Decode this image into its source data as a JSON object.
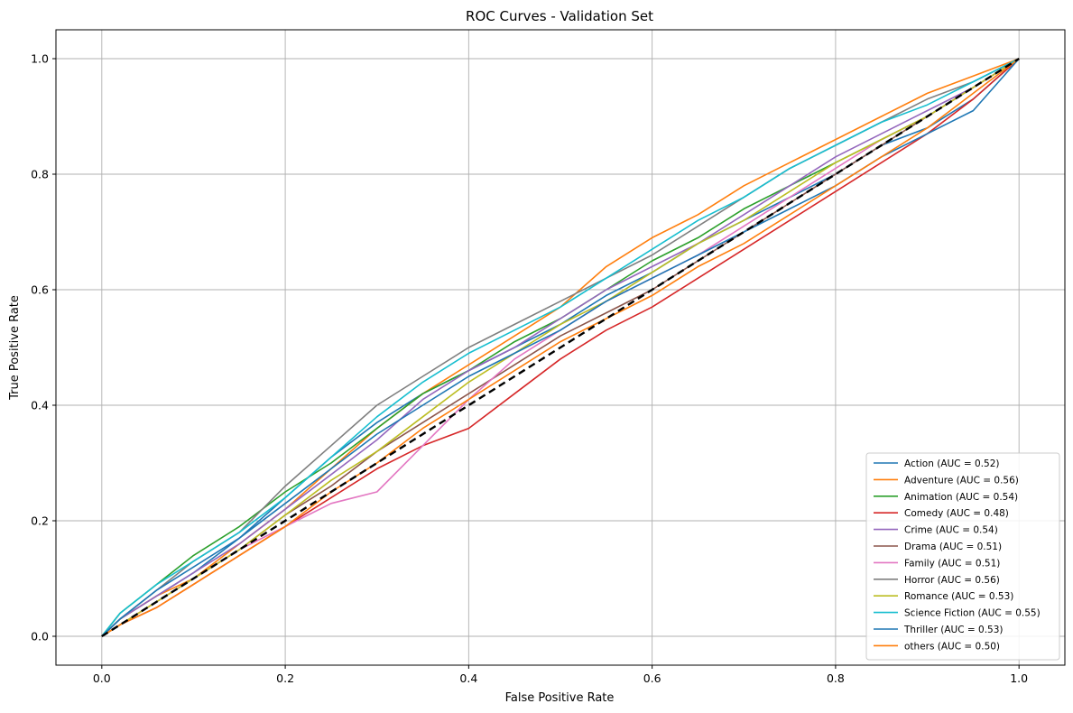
{
  "chart_data": {
    "type": "line",
    "title": "ROC Curves - Validation Set",
    "xlabel": "False Positive Rate",
    "ylabel": "True Positive Rate",
    "xlim": [
      -0.05,
      1.05
    ],
    "ylim": [
      -0.05,
      1.05
    ],
    "xticks": [
      "0.0",
      "0.2",
      "0.4",
      "0.6",
      "0.8",
      "1.0"
    ],
    "yticks": [
      "0.0",
      "0.2",
      "0.4",
      "0.6",
      "0.8",
      "1.0"
    ],
    "xtick_values": [
      0,
      0.2,
      0.4,
      0.6,
      0.8,
      1.0
    ],
    "ytick_values": [
      0,
      0.2,
      0.4,
      0.6,
      0.8,
      1.0
    ],
    "grid": true,
    "legend_position": "lower-right",
    "reference_line": {
      "x": [
        0,
        1
      ],
      "y": [
        0,
        1
      ],
      "color": "#000000",
      "style": "dashed"
    },
    "series": [
      {
        "name": "Action (AUC = 0.52)",
        "color": "#1f77b4",
        "x": [
          0,
          0.02,
          0.06,
          0.1,
          0.15,
          0.2,
          0.25,
          0.3,
          0.35,
          0.4,
          0.45,
          0.5,
          0.55,
          0.6,
          0.65,
          0.7,
          0.75,
          0.8,
          0.85,
          0.9,
          0.95,
          1.0
        ],
        "y": [
          0,
          0.03,
          0.07,
          0.11,
          0.17,
          0.24,
          0.31,
          0.37,
          0.42,
          0.46,
          0.5,
          0.54,
          0.59,
          0.63,
          0.68,
          0.72,
          0.76,
          0.8,
          0.85,
          0.88,
          0.93,
          1.0
        ]
      },
      {
        "name": "Adventure (AUC = 0.56)",
        "color": "#ff7f0e",
        "x": [
          0,
          0.02,
          0.06,
          0.1,
          0.15,
          0.2,
          0.25,
          0.3,
          0.35,
          0.4,
          0.45,
          0.5,
          0.55,
          0.6,
          0.65,
          0.7,
          0.75,
          0.8,
          0.85,
          0.9,
          0.95,
          1.0
        ],
        "y": [
          0,
          0.03,
          0.07,
          0.1,
          0.16,
          0.22,
          0.29,
          0.36,
          0.42,
          0.47,
          0.52,
          0.57,
          0.64,
          0.69,
          0.73,
          0.78,
          0.82,
          0.86,
          0.9,
          0.94,
          0.97,
          1.0
        ]
      },
      {
        "name": "Animation (AUC = 0.54)",
        "color": "#2ca02c",
        "x": [
          0,
          0.02,
          0.06,
          0.1,
          0.15,
          0.2,
          0.25,
          0.3,
          0.35,
          0.4,
          0.45,
          0.5,
          0.55,
          0.6,
          0.65,
          0.7,
          0.75,
          0.8,
          0.85,
          0.9,
          0.95,
          1.0
        ],
        "y": [
          0,
          0.04,
          0.09,
          0.14,
          0.19,
          0.25,
          0.3,
          0.36,
          0.42,
          0.46,
          0.51,
          0.55,
          0.6,
          0.65,
          0.69,
          0.74,
          0.78,
          0.82,
          0.86,
          0.9,
          0.95,
          1.0
        ]
      },
      {
        "name": "Comedy (AUC = 0.48)",
        "color": "#d62728",
        "x": [
          0,
          0.02,
          0.06,
          0.1,
          0.15,
          0.2,
          0.25,
          0.3,
          0.35,
          0.4,
          0.45,
          0.5,
          0.55,
          0.6,
          0.65,
          0.7,
          0.75,
          0.8,
          0.85,
          0.9,
          0.95,
          1.0
        ],
        "y": [
          0,
          0.02,
          0.05,
          0.09,
          0.14,
          0.19,
          0.24,
          0.29,
          0.33,
          0.36,
          0.42,
          0.48,
          0.53,
          0.57,
          0.62,
          0.67,
          0.72,
          0.77,
          0.82,
          0.87,
          0.93,
          1.0
        ]
      },
      {
        "name": "Crime (AUC = 0.54)",
        "color": "#9467bd",
        "x": [
          0,
          0.02,
          0.06,
          0.1,
          0.15,
          0.2,
          0.25,
          0.3,
          0.35,
          0.4,
          0.45,
          0.5,
          0.55,
          0.6,
          0.65,
          0.7,
          0.75,
          0.8,
          0.85,
          0.9,
          0.95,
          1.0
        ],
        "y": [
          0,
          0.03,
          0.07,
          0.11,
          0.16,
          0.22,
          0.28,
          0.34,
          0.41,
          0.46,
          0.5,
          0.55,
          0.6,
          0.64,
          0.68,
          0.73,
          0.78,
          0.83,
          0.87,
          0.91,
          0.95,
          1.0
        ]
      },
      {
        "name": "Drama (AUC = 0.51)",
        "color": "#8c564b",
        "x": [
          0,
          0.02,
          0.06,
          0.1,
          0.15,
          0.2,
          0.25,
          0.3,
          0.35,
          0.4,
          0.45,
          0.5,
          0.55,
          0.6,
          0.65,
          0.7,
          0.75,
          0.8,
          0.85,
          0.9,
          0.95,
          1.0
        ],
        "y": [
          0,
          0.02,
          0.06,
          0.1,
          0.15,
          0.21,
          0.26,
          0.32,
          0.37,
          0.42,
          0.47,
          0.52,
          0.56,
          0.6,
          0.65,
          0.7,
          0.75,
          0.8,
          0.85,
          0.9,
          0.95,
          1.0
        ]
      },
      {
        "name": "Family (AUC = 0.51)",
        "color": "#e377c2",
        "x": [
          0,
          0.02,
          0.06,
          0.1,
          0.15,
          0.2,
          0.25,
          0.3,
          0.35,
          0.4,
          0.45,
          0.5,
          0.55,
          0.6,
          0.65,
          0.7,
          0.75,
          0.8,
          0.85,
          0.9,
          0.95,
          1.0
        ],
        "y": [
          0,
          0.02,
          0.06,
          0.1,
          0.15,
          0.19,
          0.23,
          0.25,
          0.33,
          0.41,
          0.48,
          0.53,
          0.58,
          0.62,
          0.66,
          0.71,
          0.76,
          0.81,
          0.86,
          0.9,
          0.95,
          1.0
        ]
      },
      {
        "name": "Horror (AUC = 0.56)",
        "color": "#7f7f7f",
        "x": [
          0,
          0.02,
          0.06,
          0.1,
          0.15,
          0.2,
          0.25,
          0.3,
          0.35,
          0.4,
          0.45,
          0.5,
          0.55,
          0.6,
          0.65,
          0.7,
          0.75,
          0.8,
          0.85,
          0.9,
          0.95,
          1.0
        ],
        "y": [
          0,
          0.03,
          0.08,
          0.13,
          0.18,
          0.26,
          0.33,
          0.4,
          0.45,
          0.5,
          0.54,
          0.58,
          0.62,
          0.66,
          0.71,
          0.76,
          0.81,
          0.85,
          0.89,
          0.93,
          0.96,
          1.0
        ]
      },
      {
        "name": "Romance (AUC = 0.53)",
        "color": "#bcbd22",
        "x": [
          0,
          0.02,
          0.06,
          0.1,
          0.15,
          0.2,
          0.25,
          0.3,
          0.35,
          0.4,
          0.45,
          0.5,
          0.55,
          0.6,
          0.65,
          0.7,
          0.75,
          0.8,
          0.85,
          0.9,
          0.95,
          1.0
        ],
        "y": [
          0,
          0.02,
          0.06,
          0.1,
          0.15,
          0.21,
          0.27,
          0.32,
          0.38,
          0.44,
          0.49,
          0.54,
          0.58,
          0.63,
          0.68,
          0.72,
          0.77,
          0.82,
          0.86,
          0.9,
          0.95,
          1.0
        ]
      },
      {
        "name": "Science Fiction (AUC = 0.55)",
        "color": "#17becf",
        "x": [
          0,
          0.02,
          0.06,
          0.1,
          0.15,
          0.2,
          0.25,
          0.3,
          0.35,
          0.4,
          0.45,
          0.5,
          0.55,
          0.6,
          0.65,
          0.7,
          0.75,
          0.8,
          0.85,
          0.9,
          0.95,
          1.0
        ],
        "y": [
          0,
          0.04,
          0.09,
          0.13,
          0.18,
          0.24,
          0.31,
          0.38,
          0.44,
          0.49,
          0.53,
          0.57,
          0.62,
          0.67,
          0.72,
          0.76,
          0.81,
          0.85,
          0.89,
          0.92,
          0.96,
          1.0
        ]
      },
      {
        "name": "Thriller (AUC = 0.53)",
        "color": "#1f77b4",
        "x": [
          0,
          0.02,
          0.06,
          0.1,
          0.15,
          0.2,
          0.25,
          0.3,
          0.35,
          0.4,
          0.45,
          0.5,
          0.55,
          0.6,
          0.65,
          0.7,
          0.75,
          0.8,
          0.85,
          0.9,
          0.95,
          1.0
        ],
        "y": [
          0,
          0.03,
          0.08,
          0.12,
          0.17,
          0.23,
          0.29,
          0.35,
          0.4,
          0.45,
          0.49,
          0.53,
          0.58,
          0.62,
          0.66,
          0.7,
          0.74,
          0.78,
          0.83,
          0.87,
          0.91,
          1.0
        ]
      },
      {
        "name": "others (AUC = 0.50)",
        "color": "#ff7f0e",
        "x": [
          0,
          0.02,
          0.06,
          0.1,
          0.15,
          0.2,
          0.25,
          0.3,
          0.35,
          0.4,
          0.45,
          0.5,
          0.55,
          0.6,
          0.65,
          0.7,
          0.75,
          0.8,
          0.85,
          0.9,
          0.95,
          1.0
        ],
        "y": [
          0,
          0.02,
          0.05,
          0.09,
          0.14,
          0.19,
          0.25,
          0.3,
          0.36,
          0.41,
          0.46,
          0.51,
          0.55,
          0.59,
          0.64,
          0.68,
          0.73,
          0.78,
          0.83,
          0.88,
          0.94,
          1.0
        ]
      }
    ]
  }
}
